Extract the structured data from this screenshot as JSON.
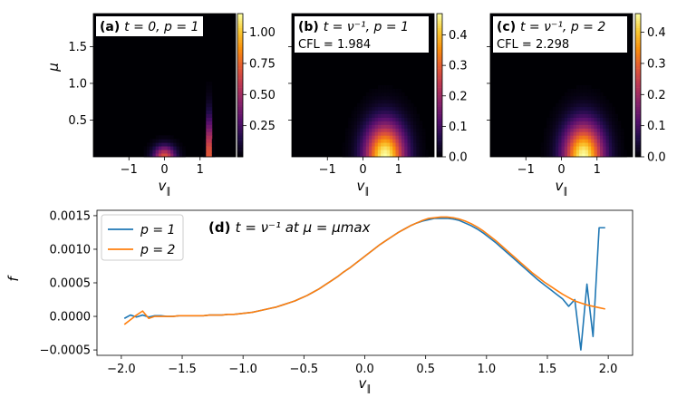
{
  "chart_data": [
    {
      "type": "heatmap",
      "panel": "a",
      "label_bold": "(a)",
      "label_text": "t = 0, p = 1",
      "xlabel": "v∥",
      "ylabel": "μ",
      "xticks": [
        "−1",
        "0",
        "1"
      ],
      "yticks": [
        "0.5",
        "1.0",
        "1.5"
      ],
      "xlim": [
        -2,
        2
      ],
      "ylim": [
        0,
        1.95
      ],
      "colorbar_ticks": [
        "0.25",
        "0.50",
        "0.75",
        "1.00"
      ],
      "colorbar_values": [
        0.25,
        0.5,
        0.75,
        1.0
      ],
      "colorbar_range": [
        0,
        1.15
      ],
      "colormap": "inferno",
      "features": [
        {
          "v_center": 0.0,
          "v_width": 0.3,
          "mu_center": 0.0,
          "mu_width": 0.15,
          "peak": 0.7
        },
        {
          "v_center": 1.25,
          "v_width": 0.06,
          "mu_center": 0.0,
          "mu_width": 0.5,
          "peak": 1.15
        }
      ]
    },
    {
      "type": "heatmap",
      "panel": "b",
      "label_bold": "(b)",
      "label_text": "t = ν⁻¹, p = 1",
      "cfl": "CFL = 1.984",
      "xlabel": "v∥",
      "xticks": [
        "−1",
        "0",
        "1"
      ],
      "xlim": [
        -2,
        2
      ],
      "ylim": [
        0,
        1.95
      ],
      "colorbar_ticks": [
        "0.0",
        "0.1",
        "0.2",
        "0.3",
        "0.4"
      ],
      "colorbar_values": [
        0,
        0.1,
        0.2,
        0.3,
        0.4
      ],
      "colorbar_range": [
        0,
        0.47
      ],
      "colormap": "inferno",
      "features": [
        {
          "v_center": 0.62,
          "v_width": 0.55,
          "mu_center": 0.0,
          "mu_width": 0.45,
          "peak": 0.47
        }
      ]
    },
    {
      "type": "heatmap",
      "panel": "c",
      "label_bold": "(c)",
      "label_text": "t = ν⁻¹, p = 2",
      "cfl": "CFL = 2.298",
      "xlabel": "v∥",
      "xticks": [
        "−1",
        "0",
        "1"
      ],
      "xlim": [
        -2,
        2
      ],
      "ylim": [
        0,
        1.95
      ],
      "colorbar_ticks": [
        "0.0",
        "0.1",
        "0.2",
        "0.3",
        "0.4"
      ],
      "colorbar_values": [
        0,
        0.1,
        0.2,
        0.3,
        0.4
      ],
      "colorbar_range": [
        0,
        0.46
      ],
      "colormap": "inferno",
      "features": [
        {
          "v_center": 0.62,
          "v_width": 0.55,
          "mu_center": 0.0,
          "mu_width": 0.45,
          "peak": 0.46
        }
      ]
    },
    {
      "type": "line",
      "panel": "d",
      "title_bold": "(d)",
      "title_text": "t = ν⁻¹ at μ = μmax",
      "xlabel": "v∥",
      "ylabel": "f",
      "xlim": [
        -2.2,
        2.2
      ],
      "ylim": [
        -0.00058,
        0.00158
      ],
      "xticks": [
        -2.0,
        -1.5,
        -1.0,
        -0.5,
        0.0,
        0.5,
        1.0,
        1.5,
        2.0
      ],
      "xtick_labels": [
        "−2.0",
        "−1.5",
        "−1.0",
        "−0.5",
        "0.0",
        "0.5",
        "1.0",
        "1.5",
        "2.0"
      ],
      "yticks": [
        -0.0005,
        0.0,
        0.0005,
        0.001,
        0.0015
      ],
      "ytick_labels": [
        "−0.0005",
        "0.0000",
        "0.0005",
        "0.0010",
        "0.0015"
      ],
      "legend_position": "top-left",
      "series": [
        {
          "name": "p = 1",
          "color": "#1f77b4",
          "x": [
            -1.975,
            -1.925,
            -1.875,
            -1.825,
            -1.775,
            -1.725,
            -1.675,
            -1.625,
            -1.575,
            -1.525,
            -1.475,
            -1.425,
            -1.375,
            -1.325,
            -1.275,
            -1.225,
            -1.175,
            -1.125,
            -1.075,
            -1.025,
            -0.975,
            -0.925,
            -0.875,
            -0.825,
            -0.775,
            -0.725,
            -0.675,
            -0.625,
            -0.575,
            -0.525,
            -0.475,
            -0.425,
            -0.375,
            -0.325,
            -0.275,
            -0.225,
            -0.175,
            -0.125,
            -0.075,
            -0.025,
            0.025,
            0.075,
            0.125,
            0.175,
            0.225,
            0.275,
            0.325,
            0.375,
            0.425,
            0.475,
            0.525,
            0.575,
            0.625,
            0.675,
            0.725,
            0.775,
            0.825,
            0.875,
            0.925,
            0.975,
            1.025,
            1.075,
            1.125,
            1.175,
            1.225,
            1.275,
            1.325,
            1.375,
            1.425,
            1.475,
            1.525,
            1.575,
            1.625,
            1.675,
            1.725,
            1.775,
            1.825,
            1.875,
            1.925,
            1.975
          ],
          "y": [
            -3e-05,
            2e-05,
            -1e-05,
            2e-05,
            -1e-05,
            1e-05,
            1e-05,
            0.0,
            0.0,
            1e-05,
            1e-05,
            1e-05,
            1e-05,
            1e-05,
            2e-05,
            2e-05,
            2e-05,
            3e-05,
            3e-05,
            4e-05,
            5e-05,
            6e-05,
            8e-05,
            0.0001,
            0.00012,
            0.00014,
            0.00017,
            0.0002,
            0.00023,
            0.00027,
            0.00031,
            0.00036,
            0.00041,
            0.00047,
            0.00053,
            0.00059,
            0.00066,
            0.00072,
            0.00079,
            0.00086,
            0.00093,
            0.001,
            0.00107,
            0.00113,
            0.00119,
            0.00125,
            0.0013,
            0.00135,
            0.00139,
            0.00142,
            0.00144,
            0.00146,
            0.00146,
            0.00146,
            0.00145,
            0.00143,
            0.00139,
            0.00135,
            0.0013,
            0.00124,
            0.00117,
            0.0011,
            0.00102,
            0.00094,
            0.00086,
            0.00078,
            0.0007,
            0.00062,
            0.00054,
            0.00047,
            0.0004,
            0.00033,
            0.00026,
            0.00015,
            0.00025,
            -0.0005,
            0.00048,
            -0.0003,
            0.00132,
            0.00132
          ]
        },
        {
          "name": "p = 2",
          "color": "#ff7f0e",
          "x": [
            -1.975,
            -1.925,
            -1.875,
            -1.825,
            -1.775,
            -1.725,
            -1.675,
            -1.625,
            -1.575,
            -1.525,
            -1.475,
            -1.425,
            -1.375,
            -1.325,
            -1.275,
            -1.225,
            -1.175,
            -1.125,
            -1.075,
            -1.025,
            -0.975,
            -0.925,
            -0.875,
            -0.825,
            -0.775,
            -0.725,
            -0.675,
            -0.625,
            -0.575,
            -0.525,
            -0.475,
            -0.425,
            -0.375,
            -0.325,
            -0.275,
            -0.225,
            -0.175,
            -0.125,
            -0.075,
            -0.025,
            0.025,
            0.075,
            0.125,
            0.175,
            0.225,
            0.275,
            0.325,
            0.375,
            0.425,
            0.475,
            0.525,
            0.575,
            0.625,
            0.675,
            0.725,
            0.775,
            0.825,
            0.875,
            0.925,
            0.975,
            1.025,
            1.075,
            1.125,
            1.175,
            1.225,
            1.275,
            1.325,
            1.375,
            1.425,
            1.475,
            1.525,
            1.575,
            1.625,
            1.675,
            1.725,
            1.775,
            1.825,
            1.875,
            1.925,
            1.975
          ],
          "y": [
            -0.00012,
            -5e-05,
            2e-05,
            8e-05,
            -3e-05,
            0.0,
            0.0,
            0.0,
            0.0,
            1e-05,
            1e-05,
            1e-05,
            1e-05,
            1e-05,
            2e-05,
            2e-05,
            2e-05,
            3e-05,
            3e-05,
            4e-05,
            5e-05,
            6e-05,
            8e-05,
            0.0001,
            0.00012,
            0.00014,
            0.00017,
            0.0002,
            0.00023,
            0.00027,
            0.00031,
            0.00036,
            0.00041,
            0.00047,
            0.00053,
            0.00059,
            0.00066,
            0.00072,
            0.00079,
            0.00086,
            0.00093,
            0.001,
            0.00107,
            0.00113,
            0.00119,
            0.00125,
            0.0013,
            0.00135,
            0.00139,
            0.00143,
            0.00146,
            0.00147,
            0.00148,
            0.00148,
            0.00147,
            0.00145,
            0.00142,
            0.00138,
            0.00133,
            0.00127,
            0.0012,
            0.00113,
            0.00105,
            0.00097,
            0.00089,
            0.00081,
            0.00073,
            0.00065,
            0.00058,
            0.00051,
            0.00045,
            0.00039,
            0.00033,
            0.00028,
            0.00023,
            0.0002,
            0.00017,
            0.00015,
            0.00013,
            0.00011
          ]
        }
      ]
    }
  ]
}
